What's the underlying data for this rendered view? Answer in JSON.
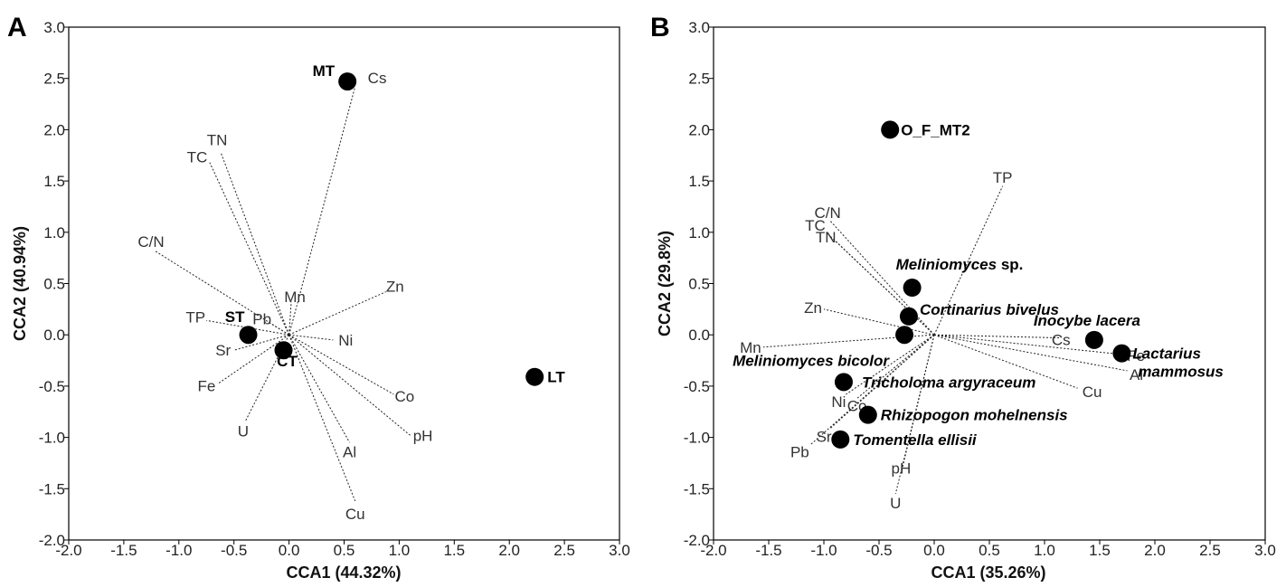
{
  "chart_data": [
    {
      "panel": "A",
      "type": "scatter",
      "xlabel": "CCA1 (44.32%)",
      "ylabel": "CCA2 (40.94%)",
      "xlim": [
        -2.0,
        3.0
      ],
      "ylim": [
        -2.0,
        3.0
      ],
      "xticks": [
        "-2.0",
        "-1.5",
        "-1.0",
        "-0.5",
        "0.0",
        "0.5",
        "1.0",
        "1.5",
        "2.0",
        "2.5",
        "3.0"
      ],
      "yticks": [
        "-2.0",
        "-1.5",
        "-1.0",
        "-0.5",
        "0.0",
        "0.5",
        "1.0",
        "1.5",
        "2.0",
        "2.5",
        "3.0"
      ],
      "grid": false,
      "vectors": [
        {
          "label": "Cs",
          "x": 0.6,
          "y": 2.42
        },
        {
          "label": "TN",
          "x": -0.62,
          "y": 1.78
        },
        {
          "label": "TC",
          "x": -0.72,
          "y": 1.68
        },
        {
          "label": "C/N",
          "x": -1.22,
          "y": 0.82
        },
        {
          "label": "Mn",
          "x": 0.02,
          "y": 0.32
        },
        {
          "label": "Zn",
          "x": 0.88,
          "y": 0.42
        },
        {
          "label": "TP",
          "x": -0.75,
          "y": 0.14
        },
        {
          "label": "Pb",
          "x": -0.18,
          "y": 0.12
        },
        {
          "label": "Ni",
          "x": 0.4,
          "y": -0.05
        },
        {
          "label": "Sr",
          "x": -0.5,
          "y": -0.15
        },
        {
          "label": "Fe",
          "x": -0.65,
          "y": -0.48
        },
        {
          "label": "U",
          "x": -0.4,
          "y": -0.85
        },
        {
          "label": "Co",
          "x": 0.95,
          "y": -0.58
        },
        {
          "label": "pH",
          "x": 1.1,
          "y": -0.98
        },
        {
          "label": "Al",
          "x": 0.55,
          "y": -1.05
        },
        {
          "label": "Cu",
          "x": 0.6,
          "y": -1.62
        }
      ],
      "sites": [
        {
          "label": "MT",
          "x": 0.53,
          "y": 2.47
        },
        {
          "label": "ST",
          "x": -0.37,
          "y": 0.0
        },
        {
          "label": "CT",
          "x": -0.05,
          "y": -0.15
        },
        {
          "label": "LT",
          "x": 2.23,
          "y": -0.41
        }
      ]
    },
    {
      "panel": "B",
      "type": "scatter",
      "xlabel": "CCA1 (35.26%)",
      "ylabel": "CCA2 (29.8%)",
      "xlim": [
        -2.0,
        3.0
      ],
      "ylim": [
        -2.0,
        3.0
      ],
      "xticks": [
        "-2.0",
        "-1.5",
        "-1.0",
        "-0.5",
        "0.0",
        "0.5",
        "1.0",
        "1.5",
        "2.0",
        "2.5",
        "3.0"
      ],
      "yticks": [
        "-2.0",
        "-1.5",
        "-1.0",
        "-0.5",
        "0.0",
        "0.5",
        "1.0",
        "1.5",
        "2.0",
        "2.5",
        "3.0"
      ],
      "grid": false,
      "vectors": [
        {
          "label": "TP",
          "x": 0.62,
          "y": 1.45
        },
        {
          "label": "C/N",
          "x": -0.95,
          "y": 1.12
        },
        {
          "label": "TC",
          "x": -0.98,
          "y": 1.0
        },
        {
          "label": "TN",
          "x": -0.9,
          "y": 0.92
        },
        {
          "label": "Zn",
          "x": -1.0,
          "y": 0.25
        },
        {
          "label": "Mn",
          "x": -1.55,
          "y": -0.12
        },
        {
          "label": "Cs",
          "x": 1.15,
          "y": -0.03
        },
        {
          "label": "Fe",
          "x": 1.78,
          "y": -0.2
        },
        {
          "label": "Al",
          "x": 1.75,
          "y": -0.35
        },
        {
          "label": "Cu",
          "x": 1.3,
          "y": -0.52
        },
        {
          "label": "Ni",
          "x": -0.8,
          "y": -0.58
        },
        {
          "label": "Co",
          "x": -0.7,
          "y": -0.62
        },
        {
          "label": "Sr",
          "x": -0.95,
          "y": -0.92
        },
        {
          "label": "Pb",
          "x": -1.12,
          "y": -1.07
        },
        {
          "label": "pH",
          "x": -0.3,
          "y": -1.35
        },
        {
          "label": "U",
          "x": -0.35,
          "y": -1.55
        }
      ],
      "sites": [
        {
          "label": "O_F_MT2",
          "x": -0.4,
          "y": 2.0
        },
        {
          "label_italic": "Meliniomyces",
          "label_plain": "sp.",
          "x": -0.2,
          "y": 0.46
        },
        {
          "label_italic": "Cortinarius bivelus",
          "x": -0.23,
          "y": 0.18
        },
        {
          "label_italic": "",
          "x": -0.27,
          "y": 0.0
        },
        {
          "label_italic": "Inocybe lacera",
          "x": 1.45,
          "y": -0.05
        },
        {
          "label_italic": "",
          "x": 1.7,
          "y": -0.18
        },
        {
          "label_italic": "",
          "x": -0.82,
          "y": -0.46
        },
        {
          "label_italic": "",
          "x": -0.6,
          "y": -0.78
        },
        {
          "label_italic": "",
          "x": -0.85,
          "y": -1.02
        }
      ],
      "species_annotations": [
        {
          "text": "Lactarius"
        },
        {
          "text": "mammosus"
        },
        {
          "text": "Meliniomyces bicolor"
        },
        {
          "text": "Tricholoma argyraceum"
        },
        {
          "text": "Rhizopogon mohelnensis"
        },
        {
          "text": "Tomentella ellisii"
        }
      ]
    }
  ]
}
